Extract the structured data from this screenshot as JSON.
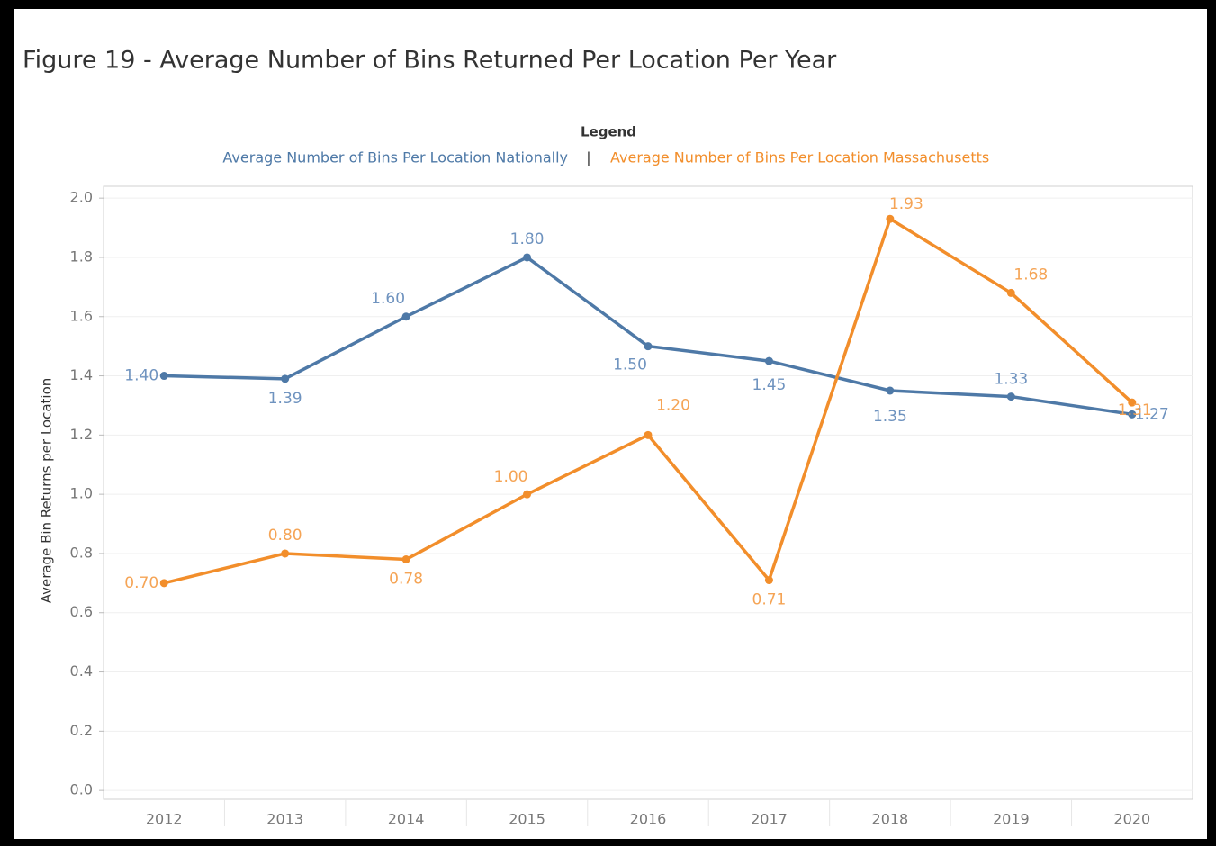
{
  "chart_data": {
    "type": "line",
    "title": "Figure 19 - Average Number of Bins Returned Per Location Per Year",
    "legend_title": "Legend",
    "legend_separator": "|",
    "y_label": "Average Bin Returns per Location",
    "categories": [
      "2012",
      "2013",
      "2014",
      "2015",
      "2016",
      "2017",
      "2018",
      "2019",
      "2020"
    ],
    "series": [
      {
        "name": "Average Number of Bins Per Location Nationally",
        "color": "#4e79a7",
        "values": [
          1.4,
          1.39,
          1.6,
          1.8,
          1.5,
          1.45,
          1.35,
          1.33,
          1.27
        ],
        "value_labels": [
          "1.40",
          "1.39",
          "1.60",
          "1.80",
          "1.50",
          "1.45",
          "1.35",
          "1.33",
          "1.27"
        ]
      },
      {
        "name": "Average Number of Bins Per Location Massachusetts",
        "color": "#f28e2b",
        "values": [
          0.7,
          0.8,
          0.78,
          1.0,
          1.2,
          0.71,
          1.93,
          1.68,
          1.31
        ],
        "value_labels": [
          "0.70",
          "0.80",
          "0.78",
          "1.00",
          "1.20",
          "0.71",
          "1.93",
          "1.68",
          "1.31"
        ]
      }
    ],
    "ylim": [
      -0.03,
      2.04
    ],
    "yticks": [
      {
        "value": 0,
        "label": "0.0"
      },
      0.2,
      0.4,
      0.6,
      0.8,
      {
        "value": 1,
        "label": "1.0"
      },
      1.2,
      1.4,
      1.6,
      1.8,
      {
        "value": 2,
        "label": "2.0"
      }
    ],
    "grid": true
  }
}
